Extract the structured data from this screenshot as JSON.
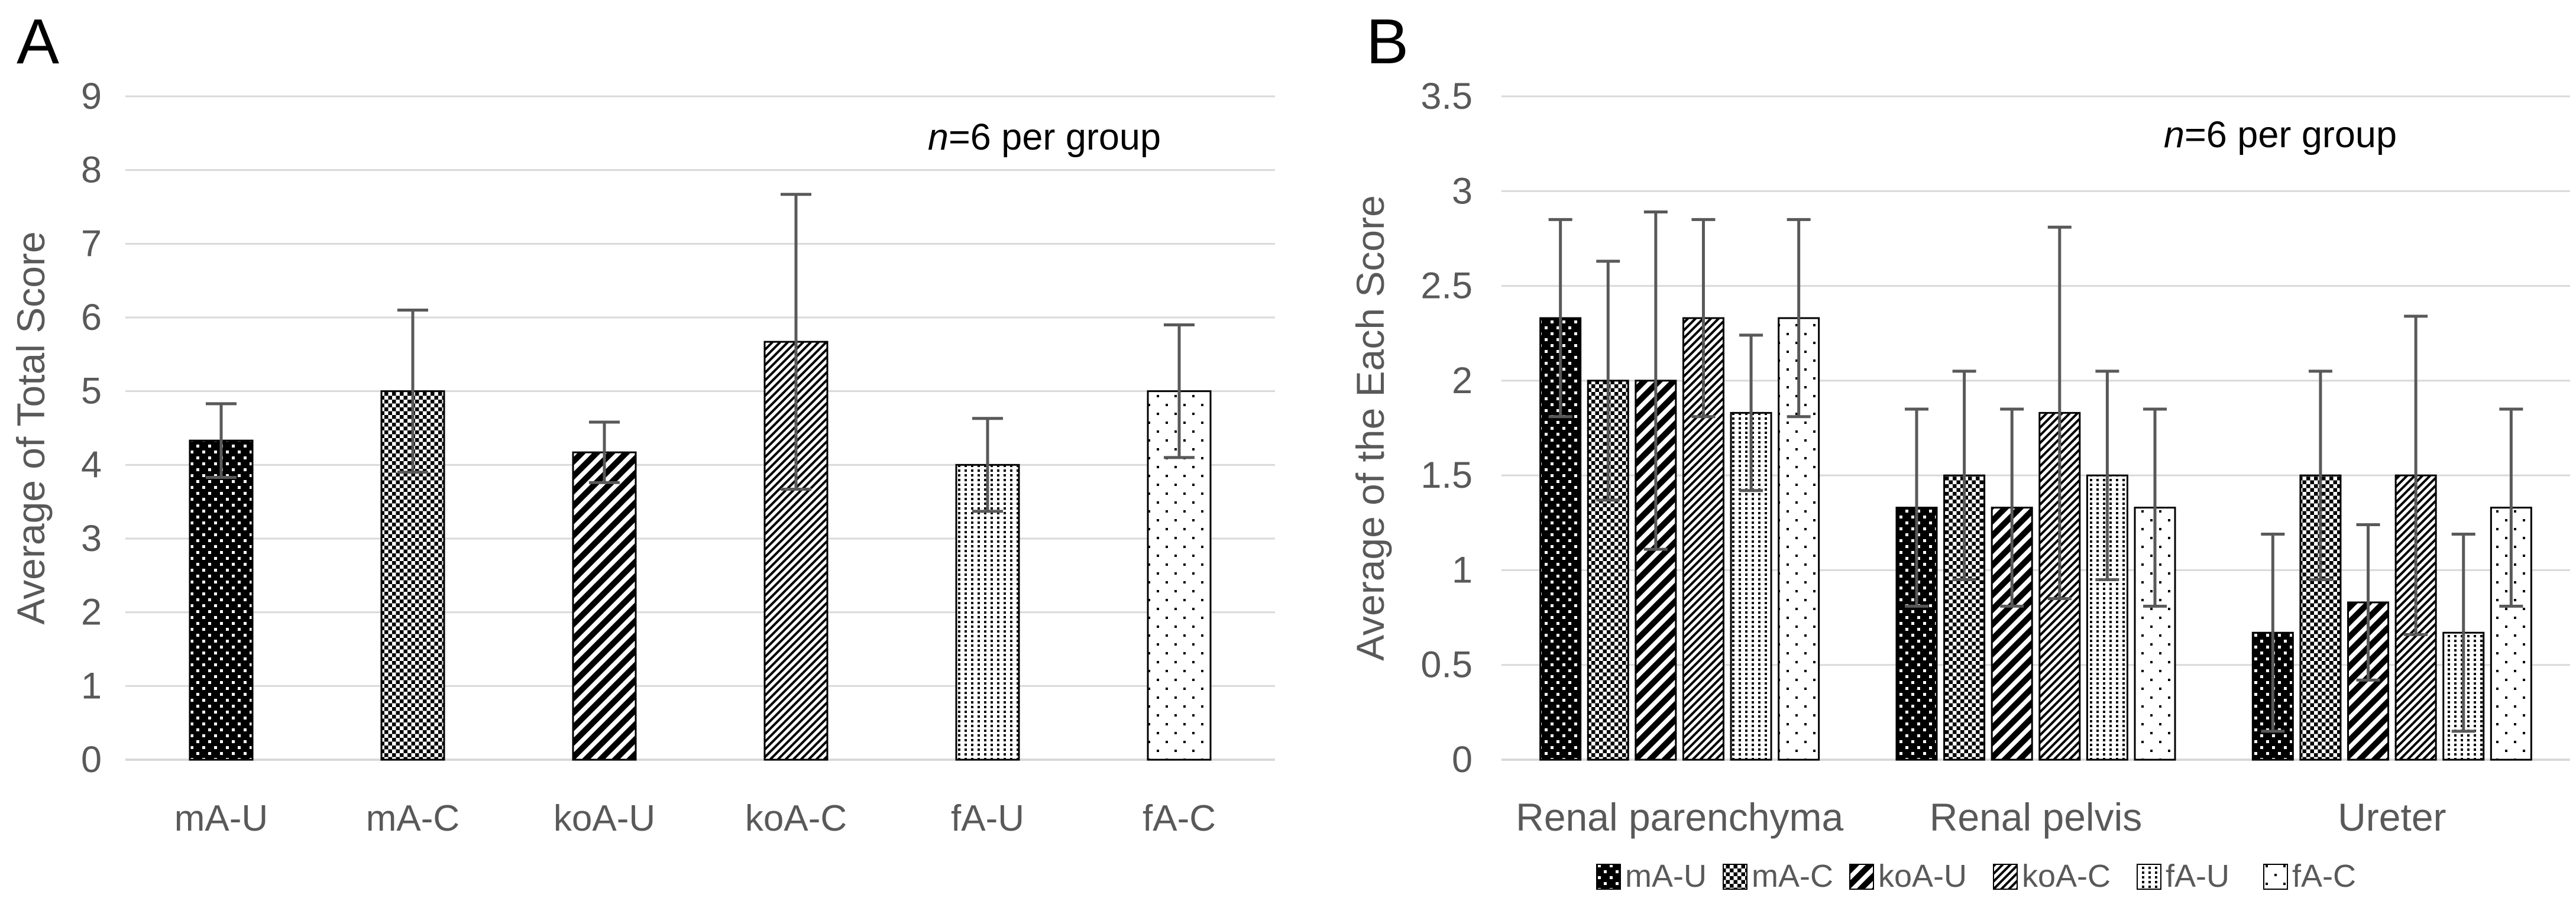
{
  "colors": {
    "background": "#ffffff",
    "gridline": "#d9d9d9",
    "axis_text": "#595959",
    "error_bar": "#595959",
    "bar_ink": "#000000"
  },
  "chart_data": [
    {
      "panel_label": "A",
      "type": "bar",
      "ylabel": "Average of Total Score",
      "annotation": {
        "italic": "n",
        "text": "=6 per group"
      },
      "ylim": [
        0,
        9
      ],
      "ytick_step": 1,
      "grid": true,
      "categories": [
        "mA-U",
        "mA-C",
        "koA-U",
        "koA-C",
        "fA-U",
        "fA-C"
      ],
      "values": [
        4.33,
        5.0,
        4.17,
        5.67,
        4.0,
        5.0
      ],
      "errors": [
        0.5,
        1.1,
        0.41,
        2.0,
        0.63,
        0.9
      ],
      "patterns": [
        "dots-white-on-black",
        "checkerboard",
        "diagonal-wide",
        "diagonal-thin",
        "dot-grid",
        "dots-sparse"
      ]
    },
    {
      "panel_label": "B",
      "type": "bar",
      "ylabel": "Average of the Each Score",
      "annotation": {
        "italic": "n",
        "text": "=6 per group"
      },
      "ylim": [
        0,
        3.5
      ],
      "ytick_step": 0.5,
      "grid": true,
      "categories": [
        "Renal parenchyma",
        "Renal pelvis",
        "Ureter"
      ],
      "series": [
        {
          "name": "mA-U",
          "pattern": "dots-white-on-black",
          "values": [
            2.33,
            1.33,
            0.67
          ],
          "errors": [
            0.52,
            0.52,
            0.52
          ]
        },
        {
          "name": "mA-C",
          "pattern": "checkerboard",
          "values": [
            2.0,
            1.5,
            1.5
          ],
          "errors": [
            0.63,
            0.55,
            0.55
          ]
        },
        {
          "name": "koA-U",
          "pattern": "diagonal-wide",
          "values": [
            2.0,
            1.33,
            0.83
          ],
          "errors": [
            0.89,
            0.52,
            0.41
          ]
        },
        {
          "name": "koA-C",
          "pattern": "diagonal-thin",
          "values": [
            2.33,
            1.83,
            1.5
          ],
          "errors": [
            0.52,
            0.98,
            0.84
          ]
        },
        {
          "name": "fA-U",
          "pattern": "dot-grid",
          "values": [
            1.83,
            1.5,
            0.67
          ],
          "errors": [
            0.41,
            0.55,
            0.52
          ]
        },
        {
          "name": "fA-C",
          "pattern": "dots-sparse",
          "values": [
            2.33,
            1.33,
            1.33
          ],
          "errors": [
            0.52,
            0.52,
            0.52
          ]
        }
      ],
      "legend": [
        "mA-U",
        "mA-C",
        "koA-U",
        "koA-C",
        "fA-U",
        "fA-C"
      ],
      "legend_position": "bottom"
    }
  ]
}
